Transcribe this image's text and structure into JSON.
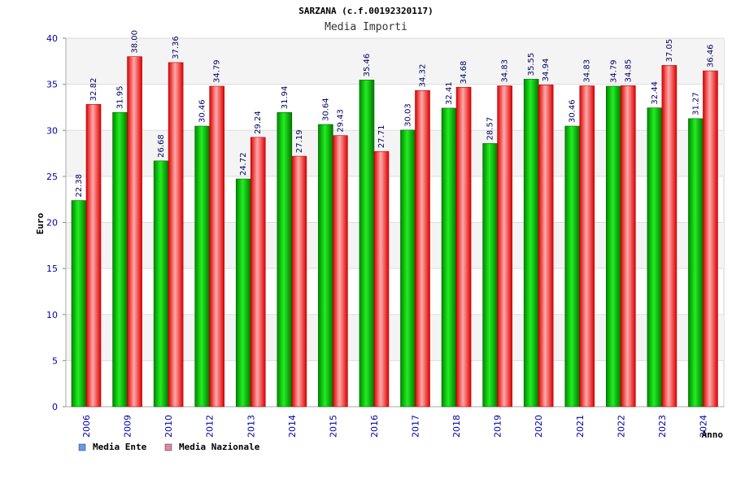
{
  "chart_data": {
    "type": "bar",
    "title": "SARZANA (c.f.00192320117)",
    "subtitle": "Media Importi",
    "xlabel": "Anno",
    "ylabel": "Euro",
    "ylim": [
      0,
      40
    ],
    "yticks": [
      0,
      5,
      10,
      15,
      20,
      25,
      30,
      35,
      40
    ],
    "grid": true,
    "legend_position": "bottom-left",
    "categories": [
      "2006",
      "2009",
      "2010",
      "2012",
      "2013",
      "2014",
      "2015",
      "2016",
      "2017",
      "2018",
      "2019",
      "2020",
      "2021",
      "2022",
      "2023",
      "2024"
    ],
    "series": [
      {
        "name": "Media Ente",
        "legend_color": "#6699ee",
        "bar_color": "#00aa00",
        "values": [
          22.38,
          31.95,
          26.68,
          30.46,
          24.72,
          31.94,
          30.64,
          35.46,
          30.03,
          32.41,
          28.57,
          35.55,
          30.46,
          34.79,
          32.44,
          31.27
        ],
        "labels": [
          "22.38",
          "31.95",
          "26.68",
          "30.46",
          "24.72",
          "31.94",
          "30.64",
          "35.46",
          "30.03",
          "32.41",
          "28.57",
          "35.55",
          "30.46",
          "34.79",
          "32.44",
          "31.27"
        ]
      },
      {
        "name": "Media Nazionale",
        "legend_color": "#dd88aa",
        "bar_color": "#ee2222",
        "values": [
          32.82,
          38.0,
          37.36,
          34.79,
          29.24,
          27.19,
          29.43,
          27.71,
          34.32,
          34.68,
          34.83,
          34.94,
          34.83,
          34.85,
          37.05,
          36.46
        ],
        "labels": [
          "32.82",
          "38.00",
          "37.36",
          "34.79",
          "29.24",
          "27.19",
          "29.43",
          "27.71",
          "34.32",
          "34.68",
          "34.83",
          "34.94",
          "34.83",
          "34.85",
          "37.05",
          "36.46"
        ]
      }
    ]
  }
}
